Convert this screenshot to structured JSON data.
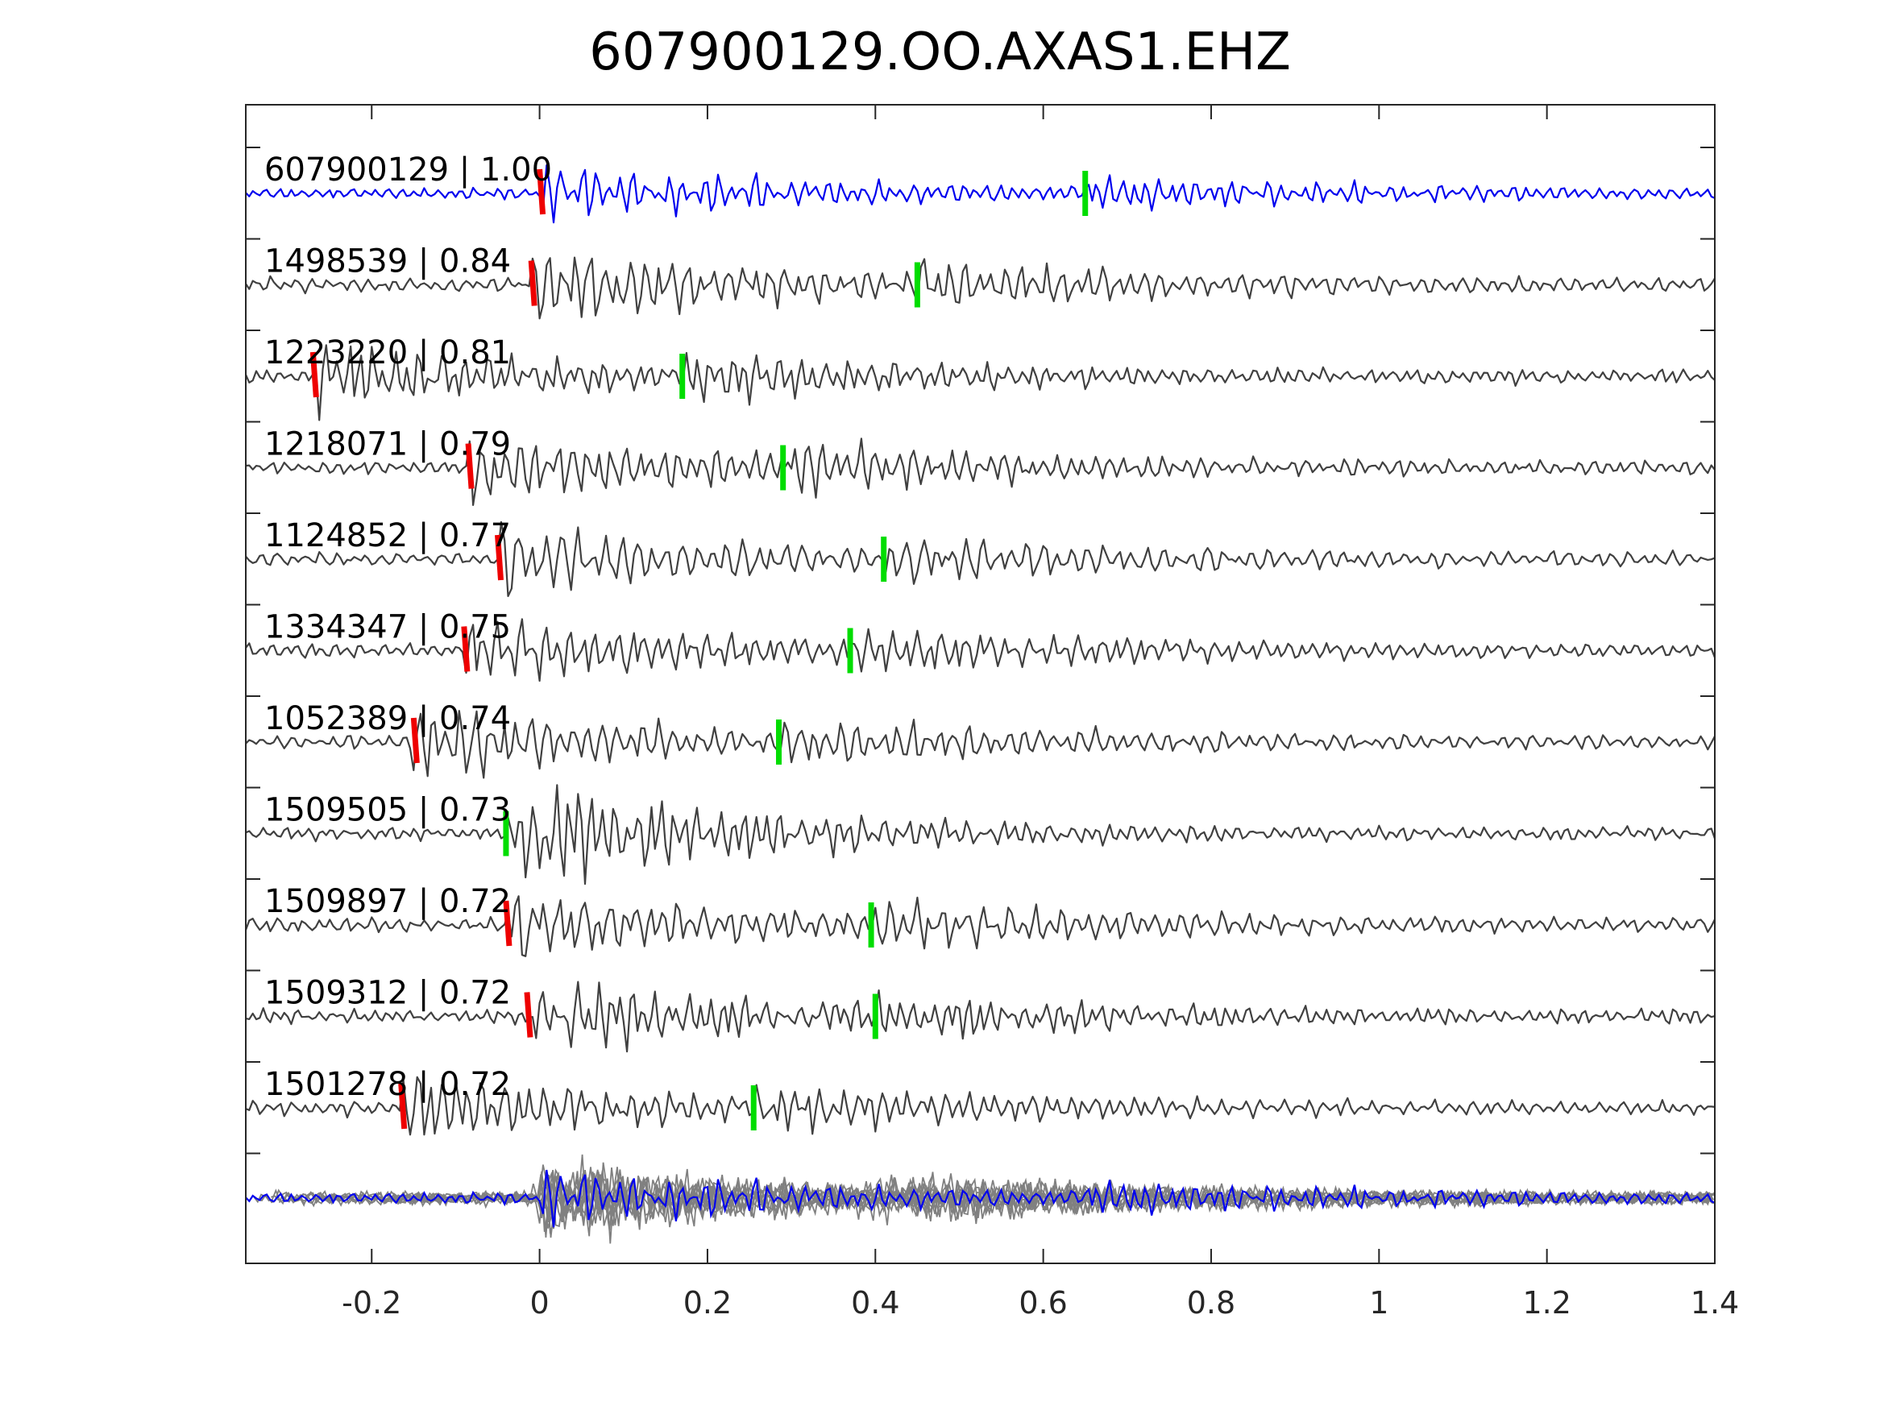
{
  "chart_data": {
    "type": "line",
    "title": "607900129.OO.AXAS1.EHZ",
    "xlabel": "",
    "ylabel": "",
    "xlim": [
      -0.35,
      1.4
    ],
    "xticks": [
      -0.2,
      0,
      0.2,
      0.4,
      0.6,
      0.8,
      1,
      1.2,
      1.4
    ],
    "xtick_labels": [
      "-0.2",
      "0",
      "0.2",
      "0.4",
      "0.6",
      "0.8",
      "1",
      "1.2",
      "1.4"
    ],
    "grid": false,
    "legend": "none",
    "colors": {
      "reference": "#0000ee",
      "trace": "#404040",
      "stack": "#808080",
      "p_pick": "#ee0000",
      "s_pick": "#00dd00",
      "axes": "#262626"
    },
    "series": [
      {
        "name": "607900129",
        "label": "607900129 | 1.00",
        "cc": 1.0,
        "p_pick": 0.0,
        "s_pick": 0.65
      },
      {
        "name": "1498539",
        "label": "1498539 | 0.84",
        "cc": 0.84,
        "p_pick": -0.01,
        "s_pick": 0.45
      },
      {
        "name": "1223220",
        "label": "1223220 | 0.81",
        "cc": 0.81,
        "p_pick": -0.27,
        "s_pick": 0.17
      },
      {
        "name": "1218071",
        "label": "1218071 | 0.79",
        "cc": 0.79,
        "p_pick": -0.085,
        "s_pick": 0.29
      },
      {
        "name": "1124852",
        "label": "1124852 | 0.77",
        "cc": 0.77,
        "p_pick": -0.05,
        "s_pick": 0.41
      },
      {
        "name": "1334347",
        "label": "1334347 | 0.75",
        "cc": 0.75,
        "p_pick": -0.09,
        "s_pick": 0.37
      },
      {
        "name": "1052389",
        "label": "1052389 | 0.74",
        "cc": 0.74,
        "p_pick": -0.15,
        "s_pick": 0.285
      },
      {
        "name": "1509505",
        "label": "1509505 | 0.73",
        "cc": 0.73,
        "p_pick": null,
        "s_pick": -0.04
      },
      {
        "name": "1509897",
        "label": "1509897 | 0.72",
        "cc": 0.72,
        "p_pick": -0.04,
        "s_pick": 0.395
      },
      {
        "name": "1509312",
        "label": "1509312 | 0.72",
        "cc": 0.72,
        "p_pick": -0.015,
        "s_pick": 0.4
      },
      {
        "name": "1501278",
        "label": "1501278 | 0.72",
        "cc": 0.72,
        "p_pick": -0.165,
        "s_pick": 0.255
      }
    ],
    "stack": {
      "name": "aligned overlay of all traces",
      "reference": "607900129"
    }
  }
}
